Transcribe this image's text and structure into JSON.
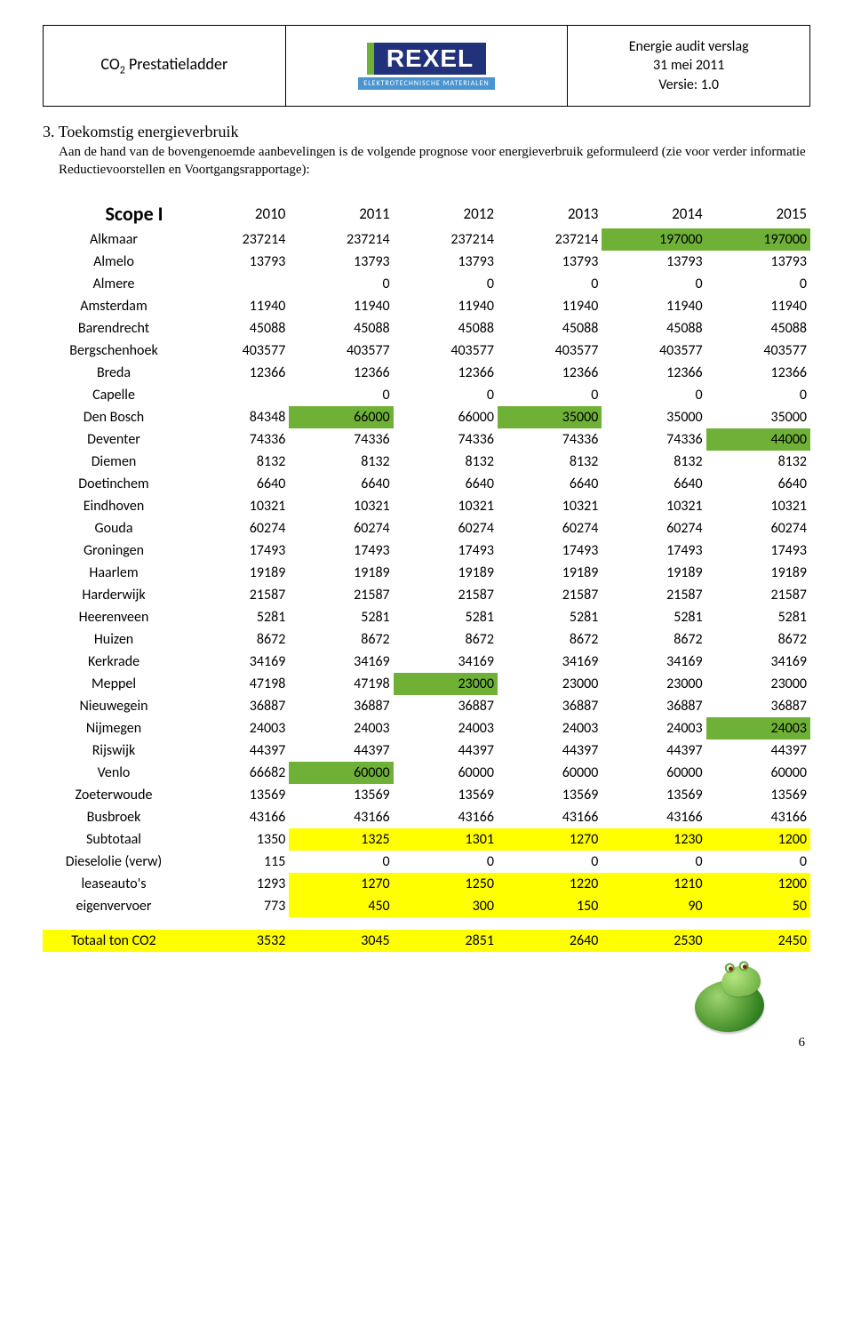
{
  "header": {
    "left_html": "CO<sub>2</sub> Prestatieladder",
    "logo_main": "REXEL",
    "logo_sub": "ELEKTROTECHNISCHE MATERIALEN",
    "right_line1": "Energie audit verslag",
    "right_line2": "31 mei 2011",
    "right_line3": "Versie: 1.0"
  },
  "section": {
    "number_title": "3. Toekomstig energieverbruik",
    "body": "Aan de hand van de bovengenoemde aanbevelingen is de volgende prognose voor energieverbruik geformuleerd (zie voor verder informatie Reductievoorstellen en Voortgangsrapportage):"
  },
  "table": {
    "scope_label": "Scope I",
    "years": [
      "2010",
      "2011",
      "2012",
      "2013",
      "2014",
      "2015"
    ],
    "rows": [
      {
        "label": "Alkmaar",
        "v": [
          "237214",
          "237214",
          "237214",
          "237214",
          "197000",
          "197000"
        ],
        "hl": [
          null,
          null,
          null,
          null,
          "green",
          "green"
        ]
      },
      {
        "label": "Almelo",
        "v": [
          "13793",
          "13793",
          "13793",
          "13793",
          "13793",
          "13793"
        ]
      },
      {
        "label": "Almere",
        "v": [
          "",
          "0",
          "0",
          "0",
          "0",
          "0"
        ]
      },
      {
        "label": "Amsterdam",
        "v": [
          "11940",
          "11940",
          "11940",
          "11940",
          "11940",
          "11940"
        ]
      },
      {
        "label": "Barendrecht",
        "v": [
          "45088",
          "45088",
          "45088",
          "45088",
          "45088",
          "45088"
        ]
      },
      {
        "label": "Bergschenhoek",
        "v": [
          "403577",
          "403577",
          "403577",
          "403577",
          "403577",
          "403577"
        ]
      },
      {
        "label": "Breda",
        "v": [
          "12366",
          "12366",
          "12366",
          "12366",
          "12366",
          "12366"
        ]
      },
      {
        "label": "Capelle",
        "v": [
          "",
          "0",
          "0",
          "0",
          "0",
          "0"
        ]
      },
      {
        "label": "Den Bosch",
        "v": [
          "84348",
          "66000",
          "66000",
          "35000",
          "35000",
          "35000"
        ],
        "hl": [
          null,
          "green",
          null,
          "green",
          null,
          null
        ]
      },
      {
        "label": "Deventer",
        "v": [
          "74336",
          "74336",
          "74336",
          "74336",
          "74336",
          "44000"
        ],
        "hl": [
          null,
          null,
          null,
          null,
          null,
          "green"
        ]
      },
      {
        "label": "Diemen",
        "v": [
          "8132",
          "8132",
          "8132",
          "8132",
          "8132",
          "8132"
        ]
      },
      {
        "label": "Doetinchem",
        "v": [
          "6640",
          "6640",
          "6640",
          "6640",
          "6640",
          "6640"
        ]
      },
      {
        "label": "Eindhoven",
        "v": [
          "10321",
          "10321",
          "10321",
          "10321",
          "10321",
          "10321"
        ]
      },
      {
        "label": "Gouda",
        "v": [
          "60274",
          "60274",
          "60274",
          "60274",
          "60274",
          "60274"
        ]
      },
      {
        "label": "Groningen",
        "v": [
          "17493",
          "17493",
          "17493",
          "17493",
          "17493",
          "17493"
        ]
      },
      {
        "label": "Haarlem",
        "v": [
          "19189",
          "19189",
          "19189",
          "19189",
          "19189",
          "19189"
        ]
      },
      {
        "label": "Harderwijk",
        "v": [
          "21587",
          "21587",
          "21587",
          "21587",
          "21587",
          "21587"
        ]
      },
      {
        "label": "Heerenveen",
        "v": [
          "5281",
          "5281",
          "5281",
          "5281",
          "5281",
          "5281"
        ]
      },
      {
        "label": "Huizen",
        "v": [
          "8672",
          "8672",
          "8672",
          "8672",
          "8672",
          "8672"
        ]
      },
      {
        "label": "Kerkrade",
        "v": [
          "34169",
          "34169",
          "34169",
          "34169",
          "34169",
          "34169"
        ]
      },
      {
        "label": "Meppel",
        "v": [
          "47198",
          "47198",
          "23000",
          "23000",
          "23000",
          "23000"
        ],
        "hl": [
          null,
          null,
          "green",
          null,
          null,
          null
        ]
      },
      {
        "label": "Nieuwegein",
        "v": [
          "36887",
          "36887",
          "36887",
          "36887",
          "36887",
          "36887"
        ]
      },
      {
        "label": "Nijmegen",
        "v": [
          "24003",
          "24003",
          "24003",
          "24003",
          "24003",
          "24003"
        ],
        "hl": [
          null,
          null,
          null,
          null,
          null,
          "green"
        ]
      },
      {
        "label": "Rijswijk",
        "v": [
          "44397",
          "44397",
          "44397",
          "44397",
          "44397",
          "44397"
        ]
      },
      {
        "label": "Venlo",
        "v": [
          "66682",
          "60000",
          "60000",
          "60000",
          "60000",
          "60000"
        ],
        "hl": [
          null,
          "green",
          null,
          null,
          null,
          null
        ]
      },
      {
        "label": "Zoeterwoude",
        "v": [
          "13569",
          "13569",
          "13569",
          "13569",
          "13569",
          "13569"
        ]
      },
      {
        "label": "Busbroek",
        "v": [
          "43166",
          "43166",
          "43166",
          "43166",
          "43166",
          "43166"
        ]
      },
      {
        "label": "Subtotaal",
        "v": [
          "1350",
          "1325",
          "1301",
          "1270",
          "1230",
          "1200"
        ],
        "hl": [
          null,
          "yellow",
          "yellow",
          "yellow",
          "yellow",
          "yellow"
        ]
      },
      {
        "label": "Dieselolie (verw)",
        "v": [
          "115",
          "0",
          "0",
          "0",
          "0",
          "0"
        ]
      },
      {
        "label": "leaseauto's",
        "v": [
          "1293",
          "1270",
          "1250",
          "1220",
          "1210",
          "1200"
        ],
        "hl": [
          null,
          "yellow",
          "yellow",
          "yellow",
          "yellow",
          "yellow"
        ]
      },
      {
        "label": "eigenvervoer",
        "v": [
          "773",
          "450",
          "300",
          "150",
          "90",
          "50"
        ],
        "hl": [
          null,
          "yellow",
          "yellow",
          "yellow",
          "yellow",
          "yellow"
        ]
      }
    ],
    "total": {
      "label": "Totaal ton CO2",
      "v": [
        "3532",
        "3045",
        "2851",
        "2640",
        "2530",
        "2450"
      ]
    }
  },
  "colors": {
    "green": "#6fb137",
    "yellow": "#ffff00",
    "logo_blue": "#21317a",
    "logo_green": "#6fb137",
    "logo_lightblue": "#4a95d0"
  },
  "page_number": "6"
}
